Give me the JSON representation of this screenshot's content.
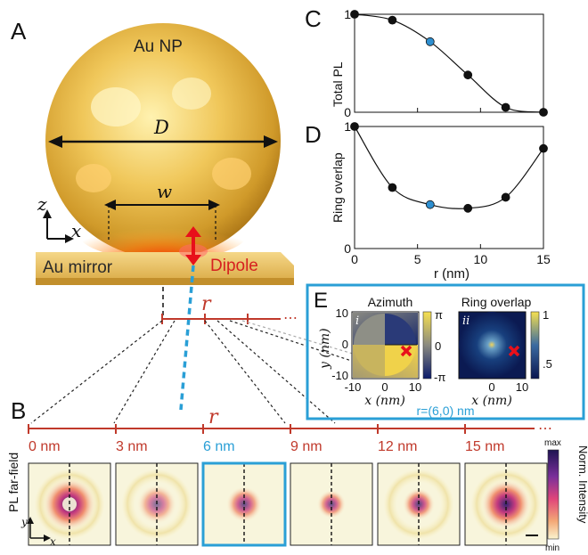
{
  "panels": {
    "A": {
      "letter": "A",
      "np_label": "Au NP",
      "diameter_label": "D",
      "width_label": "w",
      "mirror_label": "Au mirror",
      "dipole_label": "Dipole",
      "axis_z": "z",
      "axis_x": "x",
      "r_label": "r",
      "ellipsis": "⋯"
    },
    "B": {
      "letter": "B",
      "r_label": "r",
      "ellipsis": "⋯",
      "row_label": "PL far-field",
      "axis_y": "y",
      "axis_x": "x",
      "images": [
        {
          "label": "0 nm",
          "highlight": false
        },
        {
          "label": "3 nm",
          "highlight": false
        },
        {
          "label": "6 nm",
          "highlight": true
        },
        {
          "label": "9 nm",
          "highlight": false
        },
        {
          "label": "12 nm",
          "highlight": false
        },
        {
          "label": "15 nm",
          "highlight": false
        }
      ],
      "colorbar": {
        "max": "max",
        "min": "min",
        "title": "Norm. Intensity"
      }
    },
    "C": {
      "letter": "C",
      "ylabel": "Total PL"
    },
    "D": {
      "letter": "D",
      "ylabel": "Ring overlap",
      "xlabel": "r (nm)"
    },
    "E": {
      "letter": "E",
      "sub_i": {
        "title": "Azimuth",
        "tag": "i",
        "cb_ticks": [
          "π",
          "0",
          "-π"
        ]
      },
      "sub_ii": {
        "title": "Ring overlap",
        "tag": "ii",
        "cb_ticks": [
          "1",
          ".5"
        ]
      },
      "ylabel": "y (nm)",
      "xlabel": "x (nm)",
      "y_ticks": [
        "10",
        "0",
        "-10"
      ],
      "x_ticks": [
        "-10",
        "0",
        "10"
      ],
      "caption": "r=(6,0) nm"
    }
  },
  "chart_data": [
    {
      "type": "scatter",
      "panel": "C",
      "ylabel": "Total PL",
      "x_ticks": [
        0,
        5,
        10,
        15
      ],
      "y_ticks": [
        0,
        1
      ],
      "xlim": [
        0,
        15
      ],
      "ylim": [
        0,
        1
      ],
      "points": [
        {
          "x": 0,
          "y": 1.0,
          "highlight": false
        },
        {
          "x": 3,
          "y": 0.94,
          "highlight": false
        },
        {
          "x": 6,
          "y": 0.72,
          "highlight": true
        },
        {
          "x": 9,
          "y": 0.38,
          "highlight": false
        },
        {
          "x": 12,
          "y": 0.05,
          "highlight": false
        },
        {
          "x": 15,
          "y": 0.0,
          "highlight": false
        }
      ]
    },
    {
      "type": "scatter",
      "panel": "D",
      "ylabel": "Ring overlap",
      "xlabel": "r (nm)",
      "x_ticks": [
        0,
        5,
        10,
        15
      ],
      "y_ticks": [
        0,
        1
      ],
      "xlim": [
        0,
        15
      ],
      "ylim": [
        0,
        1
      ],
      "points": [
        {
          "x": 0,
          "y": 1.0,
          "highlight": false
        },
        {
          "x": 3,
          "y": 0.5,
          "highlight": false
        },
        {
          "x": 6,
          "y": 0.36,
          "highlight": true
        },
        {
          "x": 9,
          "y": 0.33,
          "highlight": false
        },
        {
          "x": 12,
          "y": 0.42,
          "highlight": false
        },
        {
          "x": 15,
          "y": 0.82,
          "highlight": false
        }
      ]
    }
  ],
  "colors": {
    "accent_red": "#c0392b",
    "accent_blue": "#2a9fd6",
    "marker_blue": "#2e8fd0",
    "dark": "#111111"
  }
}
